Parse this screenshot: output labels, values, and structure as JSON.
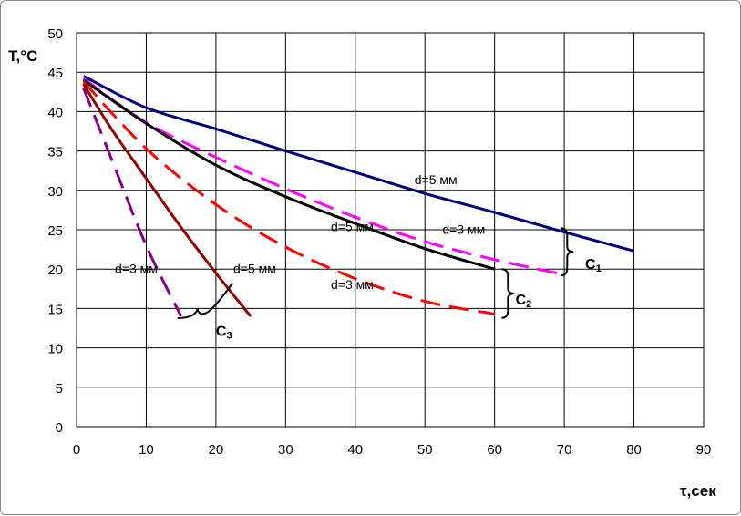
{
  "chart_data": {
    "type": "line",
    "xlabel": "τ,сек",
    "ylabel": "T,°C",
    "xlim": [
      0,
      90
    ],
    "ylim": [
      0,
      50
    ],
    "xticks": [
      0,
      10,
      20,
      30,
      40,
      50,
      60,
      70,
      80,
      90
    ],
    "yticks": [
      0,
      5,
      10,
      15,
      20,
      25,
      30,
      35,
      40,
      45,
      50
    ],
    "grid": true,
    "legend": "none",
    "series": [
      {
        "color": "#000080",
        "dash": "solid",
        "x": [
          1,
          10,
          20,
          30,
          40,
          50,
          60,
          70,
          80
        ],
        "y": [
          44.5,
          40.5,
          37.8,
          35.0,
          32.3,
          29.6,
          27.2,
          24.7,
          22.3
        ]
      },
      {
        "color": "#ff00ff",
        "dash": "dashed",
        "x": [
          1,
          10,
          20,
          30,
          40,
          50,
          60,
          70
        ],
        "y": [
          44.2,
          38.6,
          34.2,
          30.2,
          26.6,
          23.5,
          21.2,
          19.3
        ]
      },
      {
        "color": "#000000",
        "dash": "solid",
        "x": [
          1,
          10,
          20,
          30,
          40,
          50,
          60
        ],
        "y": [
          44.0,
          38.5,
          33.2,
          29.2,
          25.8,
          22.6,
          20.0
        ]
      },
      {
        "color": "#ff0000",
        "dash": "dashed",
        "x": [
          1,
          10,
          20,
          30,
          40,
          50,
          60
        ],
        "y": [
          43.8,
          35.3,
          28.2,
          22.8,
          18.8,
          15.9,
          14.3
        ]
      },
      {
        "color": "#8b0000",
        "dash": "solid",
        "x": [
          1,
          5,
          10,
          15,
          20,
          25
        ],
        "y": [
          43.5,
          37.8,
          31.5,
          25.3,
          19.5,
          14.0
        ]
      },
      {
        "color": "#800080",
        "dash": "dashed",
        "x": [
          1,
          5,
          10,
          15
        ],
        "y": [
          43.0,
          34.0,
          23.0,
          14.0
        ]
      }
    ],
    "annotations": [
      {
        "text": "d=5 мм",
        "x": 48.5,
        "y": 30.8
      },
      {
        "text": "d=5 мм",
        "x": 36.5,
        "y": 24.8
      },
      {
        "text": "d=3 мм",
        "x": 52.5,
        "y": 24.5
      },
      {
        "text": "d=3 мм",
        "x": 36.5,
        "y": 17.5
      },
      {
        "text": "d=3 мм",
        "x": 5.5,
        "y": 19.5
      },
      {
        "text": "d=5 мм",
        "x": 22.5,
        "y": 19.5
      }
    ],
    "groups": [
      {
        "label": "C",
        "sub": "1",
        "x": 73.0,
        "y": 20.0
      },
      {
        "label": "C",
        "sub": "2",
        "x": 63.0,
        "y": 15.5
      },
      {
        "label": "C",
        "sub": "3",
        "x": 20.0,
        "y": 11.5
      }
    ]
  }
}
